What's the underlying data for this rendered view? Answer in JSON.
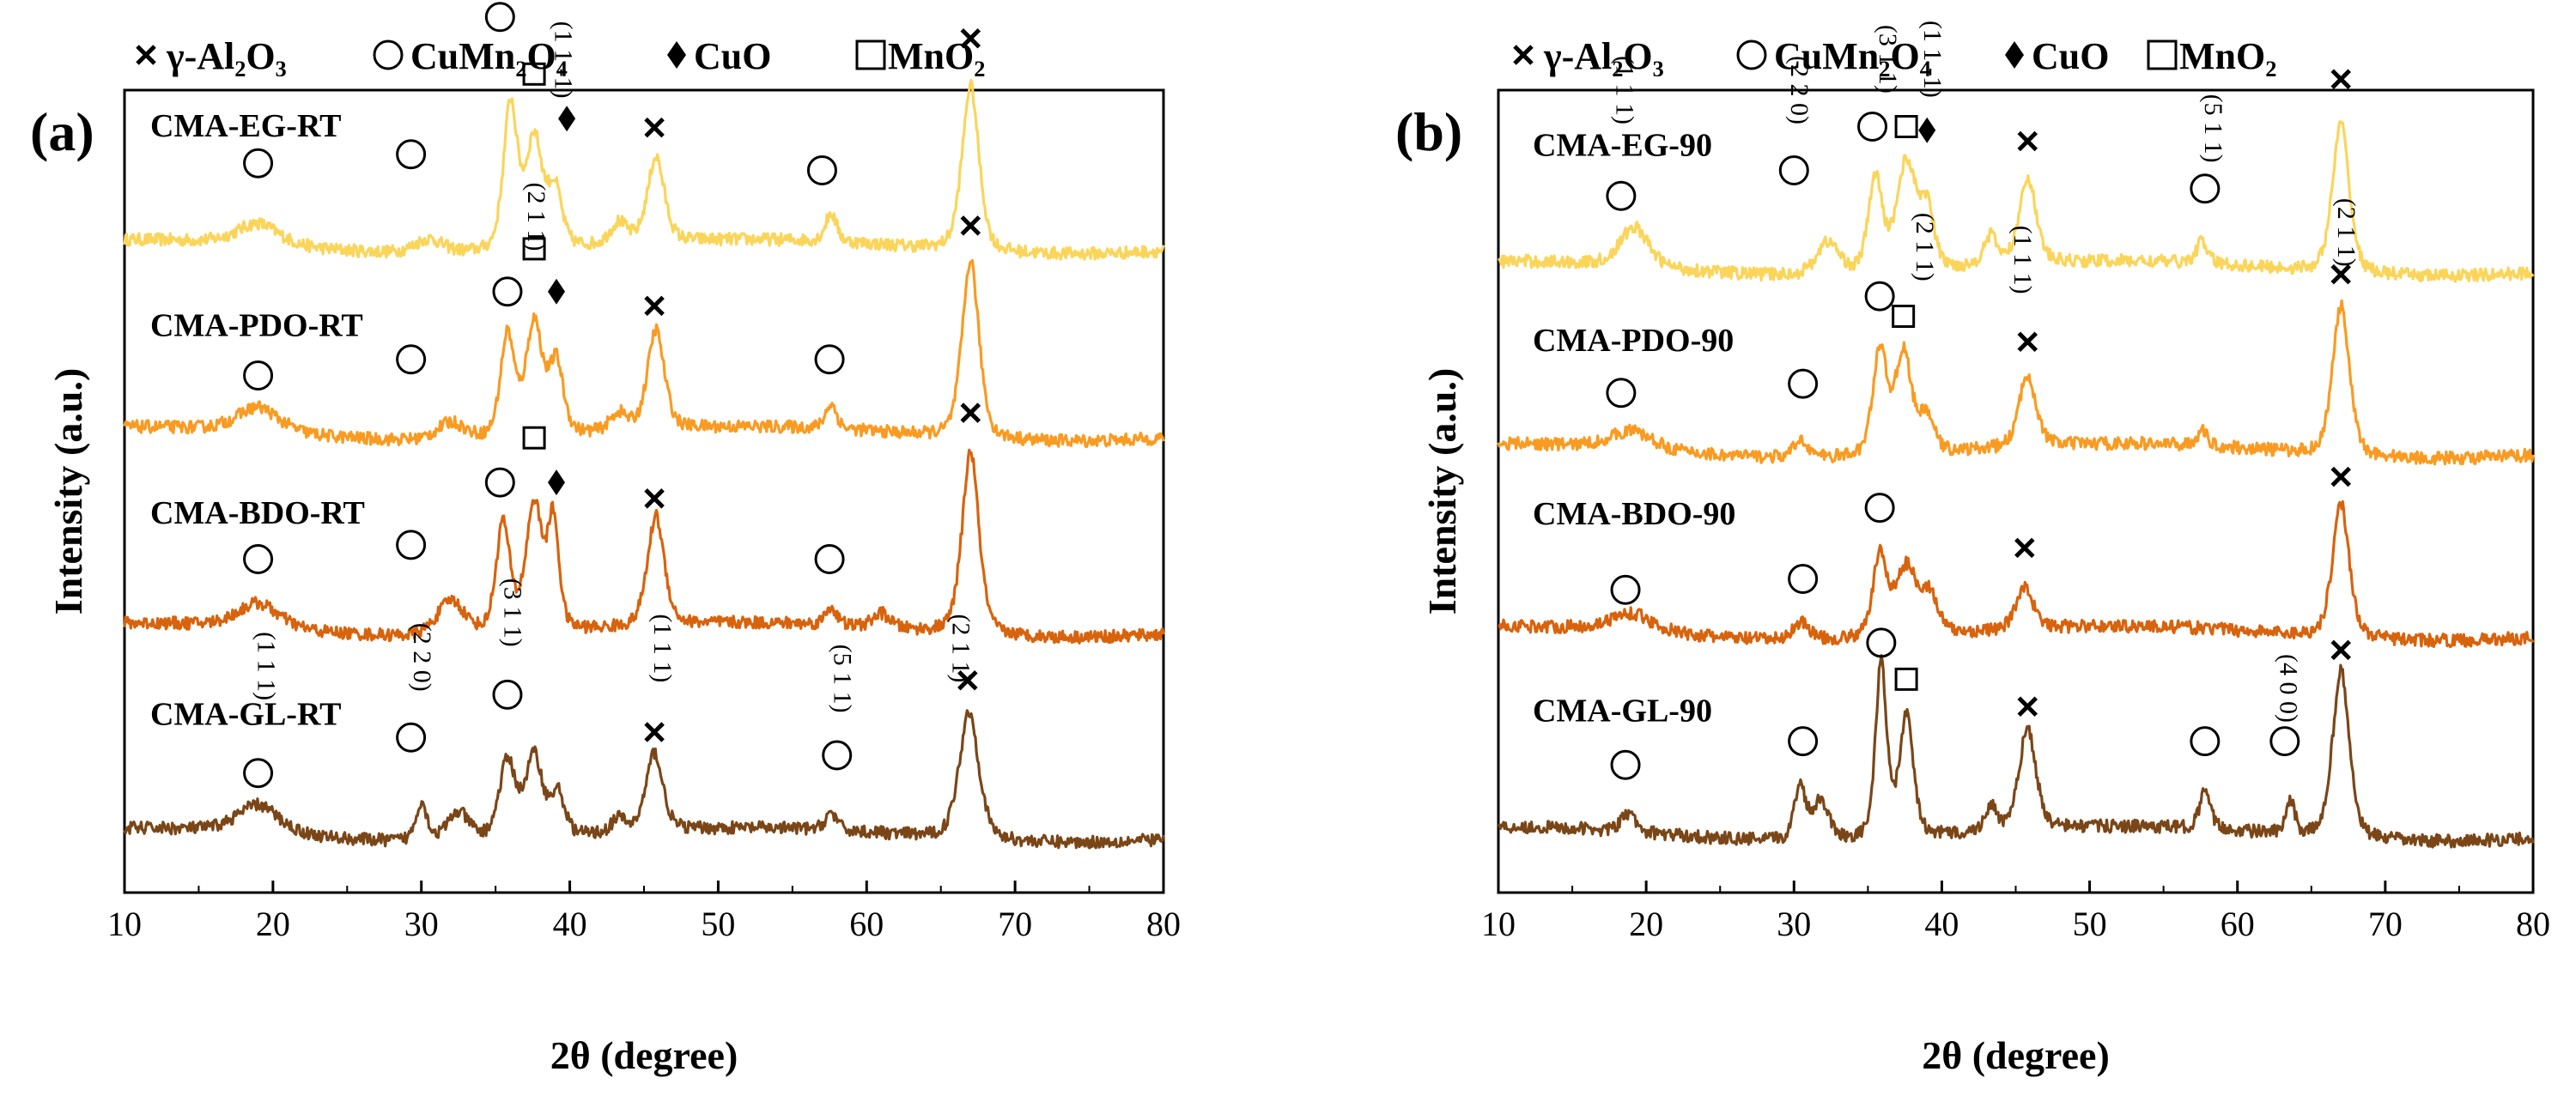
{
  "legend": {
    "items": [
      {
        "symbol": "cross",
        "label": "γ-Al₂O₃"
      },
      {
        "symbol": "circle",
        "label": "CuMn₂O₄"
      },
      {
        "symbol": "diamond",
        "label": "CuO"
      },
      {
        "symbol": "square",
        "label": "MnO₂"
      }
    ]
  },
  "colors": {
    "EG": "#fad55a",
    "PDO": "#f99b22",
    "BDO": "#d8630d",
    "GL": "#7a4617",
    "ink": "#000000"
  },
  "chart_data": [
    {
      "type": "line",
      "panel": "(a)",
      "xlabel": "2θ (degree)",
      "ylabel": "Intensity (a.u.)",
      "xlim": [
        10,
        80
      ],
      "xticks": [
        10,
        20,
        30,
        40,
        50,
        60,
        70,
        80
      ],
      "tick_labels": [
        "10",
        "20",
        "30",
        "40",
        "50",
        "60",
        "70",
        "80"
      ],
      "series": [
        {
          "name": "CMA-EG-RT",
          "color_key": "EG",
          "offset": 3.3,
          "peaks": [
            [
              19,
              0.12,
              1.5
            ],
            [
              30.5,
              0.08,
              1.0
            ],
            [
              36.0,
              0.82,
              0.5
            ],
            [
              37.6,
              0.62,
              0.6
            ],
            [
              39.0,
              0.32,
              0.5
            ],
            [
              43.3,
              0.12,
              0.6
            ],
            [
              45.8,
              0.48,
              0.6
            ],
            [
              57.6,
              0.16,
              0.4
            ],
            [
              67.0,
              0.93,
              0.6
            ]
          ],
          "markers": [
            {
              "type": "circle",
              "x": 19.0,
              "y": 0.47
            },
            {
              "type": "circle",
              "x": 29.3,
              "y": 0.52
            },
            {
              "type": "circle",
              "x": 35.3,
              "y": 1.29
            },
            {
              "type": "square",
              "x": 37.6,
              "y": 0.97
            },
            {
              "type": "diamond",
              "x": 39.8,
              "y": 0.72
            },
            {
              "type": "cross",
              "x": 45.7,
              "y": 0.67
            },
            {
              "type": "circle",
              "x": 57.0,
              "y": 0.43
            },
            {
              "type": "cross",
              "x": 67.0,
              "y": 1.17
            }
          ],
          "planes": [
            {
              "label": "(1 1 -1)",
              "x": 39.0,
              "y": 1.05
            }
          ]
        },
        {
          "name": "CMA-PDO-RT",
          "color_key": "PDO",
          "offset": 2.25,
          "peaks": [
            [
              19,
              0.14,
              1.5
            ],
            [
              32,
              0.1,
              1.0
            ],
            [
              35.8,
              0.58,
              0.5
            ],
            [
              37.6,
              0.64,
              0.6
            ],
            [
              39.1,
              0.4,
              0.5
            ],
            [
              43.3,
              0.1,
              0.6
            ],
            [
              45.8,
              0.56,
              0.6
            ],
            [
              57.6,
              0.14,
              0.4
            ],
            [
              67.0,
              1.0,
              0.6
            ]
          ],
          "markers": [
            {
              "type": "circle",
              "x": 19.0,
              "y": 0.33
            },
            {
              "type": "circle",
              "x": 29.3,
              "y": 0.42
            },
            {
              "type": "circle",
              "x": 35.8,
              "y": 0.8
            },
            {
              "type": "square",
              "x": 37.6,
              "y": 1.04
            },
            {
              "type": "diamond",
              "x": 39.1,
              "y": 0.8
            },
            {
              "type": "cross",
              "x": 45.7,
              "y": 0.72
            },
            {
              "type": "circle",
              "x": 57.5,
              "y": 0.42
            },
            {
              "type": "cross",
              "x": 67.0,
              "y": 1.17
            }
          ],
          "planes": [
            {
              "label": "(2 1 1)",
              "x": 37.2,
              "y": 1.22
            }
          ]
        },
        {
          "name": "CMA-BDO-RT",
          "color_key": "BDO",
          "offset": 1.15,
          "peaks": [
            [
              19,
              0.14,
              1.5
            ],
            [
              32,
              0.2,
              1.0
            ],
            [
              35.5,
              0.62,
              0.5
            ],
            [
              37.6,
              0.72,
              0.6
            ],
            [
              38.9,
              0.6,
              0.4
            ],
            [
              45.8,
              0.62,
              0.6
            ],
            [
              57.6,
              0.1,
              0.4
            ],
            [
              61.0,
              0.08,
              0.6
            ],
            [
              67.0,
              1.03,
              0.6
            ]
          ],
          "markers": [
            {
              "type": "circle",
              "x": 19.0,
              "y": 0.4
            },
            {
              "type": "circle",
              "x": 29.3,
              "y": 0.48
            },
            {
              "type": "circle",
              "x": 35.3,
              "y": 0.83
            },
            {
              "type": "square",
              "x": 37.6,
              "y": 1.08
            },
            {
              "type": "diamond",
              "x": 39.1,
              "y": 0.83
            },
            {
              "type": "cross",
              "x": 45.7,
              "y": 0.74
            },
            {
              "type": "circle",
              "x": 57.5,
              "y": 0.4
            },
            {
              "type": "cross",
              "x": 67.0,
              "y": 1.22
            }
          ],
          "planes": []
        },
        {
          "name": "CMA-GL-RT",
          "color_key": "GL",
          "offset": 0.0,
          "peaks": [
            [
              19,
              0.16,
              1.5
            ],
            [
              30.0,
              0.22,
              0.4
            ],
            [
              32.5,
              0.16,
              0.8
            ],
            [
              35.8,
              0.44,
              0.6
            ],
            [
              37.6,
              0.46,
              0.6
            ],
            [
              39.2,
              0.24,
              0.5
            ],
            [
              43.3,
              0.08,
              0.5
            ],
            [
              45.7,
              0.44,
              0.6
            ],
            [
              57.6,
              0.1,
              0.4
            ],
            [
              66.9,
              0.72,
              0.7
            ]
          ],
          "markers": [
            {
              "type": "circle",
              "x": 19.0,
              "y": 0.35
            },
            {
              "type": "circle",
              "x": 29.3,
              "y": 0.55
            },
            {
              "type": "circle",
              "x": 35.8,
              "y": 0.79
            },
            {
              "type": "cross",
              "x": 45.7,
              "y": 0.58
            },
            {
              "type": "circle",
              "x": 58.0,
              "y": 0.45
            },
            {
              "type": "cross",
              "x": 66.8,
              "y": 0.87
            }
          ],
          "planes": [
            {
              "label": "(1 1 1)",
              "x": 19.0,
              "y": 0.95
            },
            {
              "label": "(2 2 0)",
              "x": 29.5,
              "y": 1.0
            },
            {
              "label": "(3 1 1)",
              "x": 35.6,
              "y": 1.25
            },
            {
              "label": "(1 1 1)",
              "x": 45.7,
              "y": 1.05
            },
            {
              "label": "(5 1 1)",
              "x": 57.8,
              "y": 0.88
            },
            {
              "label": "(2 1 1)",
              "x": 65.8,
              "y": 1.05
            }
          ]
        }
      ],
      "sample_labels": [
        {
          "text": "CMA-EG-RT",
          "series": 0
        },
        {
          "text": "CMA-PDO-RT",
          "series": 1
        },
        {
          "text": "CMA-BDO-RT",
          "series": 2
        },
        {
          "text": "CMA-GL-RT",
          "series": 3
        }
      ]
    },
    {
      "type": "line",
      "panel": "(b)",
      "xlabel": "2θ (degree)",
      "ylabel": "Intensity (a.u.)",
      "xlim": [
        10,
        80
      ],
      "xticks": [
        10,
        20,
        30,
        40,
        50,
        60,
        70,
        80
      ],
      "tick_labels": [
        "10",
        "20",
        "30",
        "40",
        "50",
        "60",
        "70",
        "80"
      ],
      "series": [
        {
          "name": "CMA-EG-90",
          "color_key": "EG",
          "offset": 3.1,
          "peaks": [
            [
              19.2,
              0.22,
              1.0
            ],
            [
              32.3,
              0.18,
              0.8
            ],
            [
              35.5,
              0.52,
              0.5
            ],
            [
              37.6,
              0.6,
              0.7
            ],
            [
              39.0,
              0.32,
              0.5
            ],
            [
              43.3,
              0.16,
              0.5
            ],
            [
              45.8,
              0.48,
              0.6
            ],
            [
              57.6,
              0.12,
              0.4
            ],
            [
              67.0,
              0.82,
              0.6
            ]
          ],
          "markers": [
            {
              "type": "circle",
              "x": 18.3,
              "y": 0.4
            },
            {
              "type": "circle",
              "x": 30.0,
              "y": 0.54
            },
            {
              "type": "circle",
              "x": 35.3,
              "y": 0.78
            },
            {
              "type": "square",
              "x": 37.6,
              "y": 0.78
            },
            {
              "type": "diamond",
              "x": 39.0,
              "y": 0.76
            },
            {
              "type": "cross",
              "x": 45.8,
              "y": 0.7
            },
            {
              "type": "circle",
              "x": 57.8,
              "y": 0.44
            },
            {
              "type": "cross",
              "x": 67.0,
              "y": 1.04
            }
          ],
          "planes": [
            {
              "label": "(1 1 1)",
              "x": 18.0,
              "y": 0.98
            },
            {
              "label": "(2 2 0)",
              "x": 29.8,
              "y": 0.98
            },
            {
              "label": "(3 1 1)",
              "x": 35.8,
              "y": 1.15
            },
            {
              "label": "(1 1 -1)",
              "x": 38.8,
              "y": 1.15
            },
            {
              "label": "(5 1 1)",
              "x": 57.8,
              "y": 0.77
            }
          ]
        },
        {
          "name": "CMA-PDO-90",
          "color_key": "PDO",
          "offset": 2.1,
          "peaks": [
            [
              19,
              0.1,
              1.5
            ],
            [
              30.5,
              0.1,
              0.5
            ],
            [
              35.8,
              0.58,
              0.5
            ],
            [
              37.4,
              0.56,
              0.6
            ],
            [
              39.0,
              0.2,
              0.5
            ],
            [
              45.8,
              0.4,
              0.6
            ],
            [
              57.6,
              0.08,
              0.4
            ],
            [
              67.0,
              0.82,
              0.6
            ]
          ],
          "markers": [
            {
              "type": "circle",
              "x": 18.3,
              "y": 0.32
            },
            {
              "type": "circle",
              "x": 30.6,
              "y": 0.37
            },
            {
              "type": "circle",
              "x": 35.8,
              "y": 0.85
            },
            {
              "type": "square",
              "x": 37.4,
              "y": 0.74
            },
            {
              "type": "cross",
              "x": 45.8,
              "y": 0.6
            },
            {
              "type": "cross",
              "x": 67.0,
              "y": 0.97
            }
          ],
          "planes": [
            {
              "label": "(2 1 1)",
              "x": 38.3,
              "y": 1.12
            },
            {
              "label": "(1 1 1)",
              "x": 44.9,
              "y": 1.05
            },
            {
              "label": "(2 1 1)",
              "x": 66.8,
              "y": 1.2
            }
          ]
        },
        {
          "name": "CMA-BDO-90",
          "color_key": "BDO",
          "offset": 1.1,
          "peaks": [
            [
              19,
              0.1,
              1.5
            ],
            [
              30.5,
              0.1,
              0.6
            ],
            [
              35.8,
              0.44,
              0.5
            ],
            [
              37.6,
              0.38,
              0.8
            ],
            [
              39.2,
              0.2,
              0.6
            ],
            [
              45.6,
              0.24,
              0.6
            ],
            [
              67.0,
              0.74,
              0.6
            ]
          ],
          "markers": [
            {
              "type": "circle",
              "x": 18.6,
              "y": 0.24
            },
            {
              "type": "circle",
              "x": 30.6,
              "y": 0.3
            },
            {
              "type": "circle",
              "x": 35.8,
              "y": 0.69
            },
            {
              "type": "cross",
              "x": 45.6,
              "y": 0.47
            },
            {
              "type": "cross",
              "x": 67.0,
              "y": 0.86
            }
          ],
          "planes": []
        },
        {
          "name": "CMA-GL-90",
          "color_key": "GL",
          "offset": 0.0,
          "peaks": [
            [
              18.8,
              0.1,
              0.5
            ],
            [
              30.4,
              0.3,
              0.4
            ],
            [
              31.8,
              0.22,
              0.6
            ],
            [
              35.9,
              0.96,
              0.4
            ],
            [
              37.6,
              0.66,
              0.5
            ],
            [
              43.3,
              0.14,
              0.4
            ],
            [
              45.8,
              0.56,
              0.6
            ],
            [
              57.8,
              0.2,
              0.4
            ],
            [
              63.6,
              0.18,
              0.3
            ],
            [
              67.0,
              0.92,
              0.6
            ]
          ],
          "markers": [
            {
              "type": "circle",
              "x": 18.6,
              "y": 0.38
            },
            {
              "type": "circle",
              "x": 30.6,
              "y": 0.51
            },
            {
              "type": "circle",
              "x": 35.9,
              "y": 1.05
            },
            {
              "type": "square",
              "x": 37.6,
              "y": 0.85
            },
            {
              "type": "cross",
              "x": 45.8,
              "y": 0.7
            },
            {
              "type": "circle",
              "x": 57.8,
              "y": 0.51
            },
            {
              "type": "circle",
              "x": 63.2,
              "y": 0.51
            },
            {
              "type": "cross",
              "x": 67.0,
              "y": 1.01
            }
          ],
          "planes": [
            {
              "label": "(4 0 0)",
              "x": 62.9,
              "y": 0.8
            }
          ]
        }
      ],
      "sample_labels": [
        {
          "text": "CMA-EG-90",
          "series": 0
        },
        {
          "text": "CMA-PDO-90",
          "series": 1
        },
        {
          "text": "CMA-BDO-90",
          "series": 2
        },
        {
          "text": "CMA-GL-90",
          "series": 3
        }
      ]
    }
  ]
}
